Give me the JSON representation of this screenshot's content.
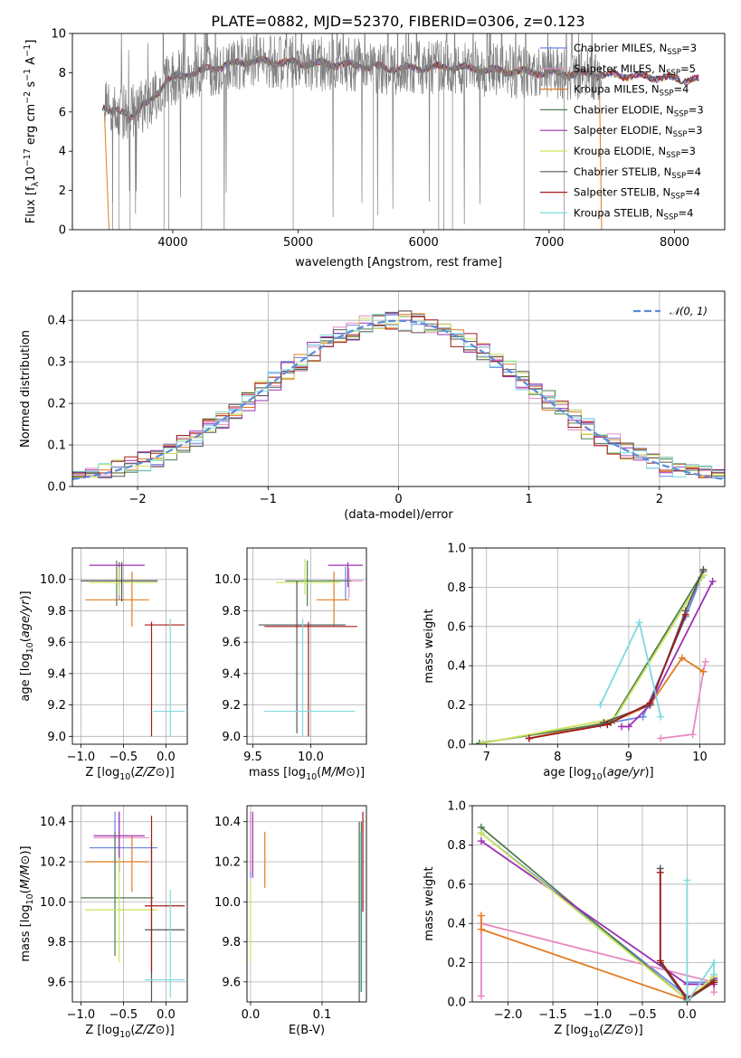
{
  "figure": {
    "title": "PLATE=0882, MJD=52370, FIBERID=0306, z=0.123",
    "legend": [
      {
        "label": "Chabrier MILES, N",
        "sub": "SSP",
        "suffix": "=3",
        "color": "#6a86e6"
      },
      {
        "label": "Salpeter MILES, N",
        "sub": "SSP",
        "suffix": "=5",
        "color": "#e78ac3"
      },
      {
        "label": "Kroupa MILES, N",
        "sub": "SSP",
        "suffix": "=4",
        "color": "#e07b21"
      },
      {
        "label": "Chabrier ELODIE, N",
        "sub": "SSP",
        "suffix": "=3",
        "color": "#4e7d4e"
      },
      {
        "label": "Salpeter ELODIE, N",
        "sub": "SSP",
        "suffix": "=3",
        "color": "#9b2fb3"
      },
      {
        "label": "Kroupa ELODIE, N",
        "sub": "SSP",
        "suffix": "=3",
        "color": "#c9e35a"
      },
      {
        "label": "Chabrier STELIB, N",
        "sub": "SSP",
        "suffix": "=4",
        "color": "#555555"
      },
      {
        "label": "Salpeter STELIB, N",
        "sub": "SSP",
        "suffix": "=4",
        "color": "#a31a1a"
      },
      {
        "label": "Kroupa STELIB, N",
        "sub": "SSP",
        "suffix": "=4",
        "color": "#7fd9e0"
      }
    ],
    "normal_label": "𝒩(0, 1)"
  },
  "chart_data": [
    {
      "id": "spectrum",
      "type": "line",
      "xlabel": "wavelength [Angstrom, rest frame]",
      "ylabel": "Flux [f",
      "ylabel_parts": [
        "Flux [f",
        "λ",
        "10",
        "−17",
        " erg cm",
        "−2",
        " s",
        "−1",
        " A",
        "−1",
        "]"
      ],
      "xlim": [
        3200,
        8400
      ],
      "ylim": [
        0,
        10
      ],
      "xticks": [
        4000,
        5000,
        6000,
        7000,
        8000
      ],
      "yticks": [
        0,
        2,
        4,
        6,
        8,
        10
      ],
      "data_color": "#7f7f7f",
      "continuum_knots_x": [
        3450,
        3500,
        3650,
        3800,
        3950,
        4100,
        4300,
        4600,
        5000,
        5400,
        5800,
        6200,
        6600,
        7000,
        7400,
        7800,
        8200
      ],
      "continuum_knots_y": [
        6.3,
        6.0,
        6.0,
        6.4,
        7.6,
        7.9,
        8.2,
        8.6,
        8.5,
        8.4,
        8.2,
        8.3,
        8.1,
        8.0,
        7.9,
        7.8,
        7.6
      ],
      "grid": false
    },
    {
      "id": "residuals",
      "type": "bar",
      "xlabel": "(data-model)/error",
      "ylabel": "Normed distribution",
      "xlim": [
        -2.5,
        2.5
      ],
      "ylim": [
        0,
        0.47
      ],
      "xticks": [
        -2,
        -1,
        0,
        1,
        2
      ],
      "xtick_labels": [
        "−2",
        "−1",
        "0",
        "1",
        "2"
      ],
      "yticks": [
        0.0,
        0.1,
        0.2,
        0.3,
        0.4
      ],
      "ytick_labels": [
        "0.0",
        "0.1",
        "0.2",
        "0.3",
        "0.4"
      ],
      "bin_width": 0.1,
      "normal_color": "#5b8bd9",
      "grid": true
    },
    {
      "id": "age_vs_Z",
      "type": "scatter",
      "xlabel": "Z [log10(Z/Z⊙)]",
      "ylabel": "age  [log10(age/yr)]",
      "xlim": [
        -1.1,
        0.25
      ],
      "ylim": [
        8.95,
        10.2
      ],
      "xticks": [
        -1.0,
        -0.5,
        0.0
      ],
      "xtick_labels": [
        "−1.0",
        "−0.5",
        "0.0"
      ],
      "yticks": [
        9.0,
        9.2,
        9.4,
        9.6,
        9.8,
        10.0
      ],
      "ytick_labels": [
        "9.0",
        "9.2",
        "9.4",
        "9.6",
        "9.8",
        "10.0"
      ],
      "points": [
        {
          "x": -0.55,
          "y": 9.99,
          "xlo": -1.0,
          "xhi": -0.1,
          "ylo": 9.87,
          "yhi": 10.08,
          "color": "#6a86e6"
        },
        {
          "x": -0.55,
          "y": 9.99,
          "xlo": -0.75,
          "xhi": -0.1,
          "ylo": 9.88,
          "yhi": 10.07,
          "color": "#e78ac3"
        },
        {
          "x": -0.4,
          "y": 9.87,
          "xlo": -0.95,
          "xhi": -0.2,
          "ylo": 9.7,
          "yhi": 10.05,
          "color": "#e07b21"
        },
        {
          "x": -0.58,
          "y": 9.99,
          "xlo": -1.0,
          "xhi": -0.1,
          "ylo": 9.83,
          "yhi": 10.12,
          "color": "#4e7d4e"
        },
        {
          "x": -0.55,
          "y": 10.09,
          "xlo": -0.9,
          "xhi": -0.25,
          "ylo": 9.95,
          "yhi": 10.11,
          "color": "#9b2fb3"
        },
        {
          "x": -0.55,
          "y": 9.98,
          "xlo": -0.9,
          "xhi": -0.1,
          "ylo": 9.9,
          "yhi": 10.08,
          "color": "#c9e35a"
        },
        {
          "x": -0.52,
          "y": 9.99,
          "xlo": -1.0,
          "xhi": -0.1,
          "ylo": 9.86,
          "yhi": 10.11,
          "color": "#555555"
        },
        {
          "x": -0.17,
          "y": 9.71,
          "xlo": -0.25,
          "xhi": 0.22,
          "ylo": 9.0,
          "yhi": 9.73,
          "color": "#a31a1a"
        },
        {
          "x": 0.05,
          "y": 9.16,
          "xlo": -0.15,
          "xhi": 0.22,
          "ylo": 9.0,
          "yhi": 9.75,
          "color": "#7fd9e0"
        }
      ]
    },
    {
      "id": "age_vs_mass",
      "type": "scatter",
      "xlabel": "mass [log10(M/M⊙)]",
      "ylabel": "",
      "xlim": [
        9.45,
        10.48
      ],
      "ylim": [
        8.95,
        10.2
      ],
      "xticks": [
        9.5,
        10.0
      ],
      "xtick_labels": [
        "9.5",
        "10.0"
      ],
      "yticks": [
        9.0,
        9.2,
        9.4,
        9.6,
        9.8,
        10.0
      ],
      "ytick_labels": [
        "9.0",
        "9.2",
        "9.4",
        "9.6",
        "9.8",
        "10.0"
      ],
      "points": [
        {
          "x": 10.3,
          "y": 9.99,
          "xlo": 10.1,
          "xhi": 10.45,
          "ylo": 9.87,
          "yhi": 10.08,
          "color": "#6a86e6"
        },
        {
          "x": 10.33,
          "y": 9.99,
          "xlo": 10.15,
          "xhi": 10.45,
          "ylo": 9.88,
          "yhi": 10.07,
          "color": "#e78ac3"
        },
        {
          "x": 10.2,
          "y": 9.87,
          "xlo": 10.05,
          "xhi": 10.33,
          "ylo": 9.7,
          "yhi": 10.05,
          "color": "#e07b21"
        },
        {
          "x": 9.97,
          "y": 9.99,
          "xlo": 9.78,
          "xhi": 10.35,
          "ylo": 9.83,
          "yhi": 10.12,
          "color": "#4e7d4e"
        },
        {
          "x": 10.32,
          "y": 10.09,
          "xlo": 10.15,
          "xhi": 10.45,
          "ylo": 9.95,
          "yhi": 10.11,
          "color": "#9b2fb3"
        },
        {
          "x": 9.95,
          "y": 9.98,
          "xlo": 9.7,
          "xhi": 10.25,
          "ylo": 9.9,
          "yhi": 10.13,
          "color": "#c9e35a"
        },
        {
          "x": 9.88,
          "y": 9.71,
          "xlo": 9.55,
          "xhi": 10.3,
          "ylo": 9.02,
          "yhi": 9.99,
          "color": "#555555"
        },
        {
          "x": 9.98,
          "y": 9.7,
          "xlo": 9.6,
          "xhi": 10.4,
          "ylo": 9.0,
          "yhi": 9.73,
          "color": "#a31a1a"
        },
        {
          "x": 9.93,
          "y": 9.16,
          "xlo": 9.6,
          "xhi": 10.38,
          "ylo": 9.0,
          "yhi": 9.75,
          "color": "#7fd9e0"
        }
      ]
    },
    {
      "id": "mass_weight_vs_age",
      "type": "line",
      "xlabel": "age  [log10(age/yr)]",
      "ylabel": "mass weight",
      "xlim": [
        6.8,
        10.35
      ],
      "ylim": [
        0,
        1
      ],
      "xticks": [
        7,
        8,
        9,
        10
      ],
      "xtick_labels": [
        "7",
        "8",
        "9",
        "10"
      ],
      "yticks": [
        0.0,
        0.2,
        0.4,
        0.6,
        0.8,
        1.0
      ],
      "ytick_labels": [
        "0.0",
        "0.2",
        "0.4",
        "0.6",
        "0.8",
        "1.0"
      ],
      "series": [
        {
          "color": "#6a86e6",
          "x": [
            7.6,
            8.6,
            9.2,
            9.8,
            10.02
          ],
          "y": [
            0.03,
            0.1,
            0.14,
            0.65,
            0.85
          ]
        },
        {
          "color": "#e78ac3",
          "x": [
            9.45,
            9.9,
            10.05,
            10.08
          ],
          "y": [
            0.03,
            0.05,
            0.37,
            0.42
          ]
        },
        {
          "color": "#e07b21",
          "x": [
            7.6,
            8.8,
            9.3,
            9.75,
            10.05
          ],
          "y": [
            0.03,
            0.12,
            0.2,
            0.44,
            0.37
          ]
        },
        {
          "color": "#4e7d4e",
          "x": [
            6.9,
            8.75,
            10.05
          ],
          "y": [
            0.005,
            0.11,
            0.88
          ]
        },
        {
          "color": "#9b2fb3",
          "x": [
            8.9,
            9.0,
            9.3,
            10.18
          ],
          "y": [
            0.09,
            0.09,
            0.2,
            0.83
          ]
        },
        {
          "color": "#c9e35a",
          "x": [
            6.95,
            8.8,
            10.05
          ],
          "y": [
            0.005,
            0.13,
            0.86
          ]
        },
        {
          "color": "#555555",
          "x": [
            8.65,
            9.3,
            9.8,
            10.05
          ],
          "y": [
            0.11,
            0.2,
            0.68,
            0.89
          ]
        },
        {
          "color": "#a31a1a",
          "x": [
            7.6,
            8.7,
            9.3,
            9.8
          ],
          "y": [
            0.03,
            0.1,
            0.21,
            0.66
          ]
        },
        {
          "color": "#7fd9e0",
          "x": [
            8.6,
            9.15,
            9.45
          ],
          "y": [
            0.2,
            0.62,
            0.14
          ]
        }
      ]
    },
    {
      "id": "mass_vs_Z",
      "type": "scatter",
      "xlabel": "Z [log10(Z/Z⊙)]",
      "ylabel": "mass [log10(M/M⊙)]",
      "xlim": [
        -1.1,
        0.25
      ],
      "ylim": [
        9.5,
        10.48
      ],
      "xticks": [
        -1.0,
        -0.5,
        0.0
      ],
      "xtick_labels": [
        "−1.0",
        "−0.5",
        "0.0"
      ],
      "yticks": [
        9.6,
        9.8,
        10.0,
        10.2,
        10.4
      ],
      "ytick_labels": [
        "9.6",
        "9.8",
        "10.0",
        "10.2",
        "10.4"
      ],
      "points": [
        {
          "x": -0.6,
          "y": 10.27,
          "xlo": -0.9,
          "xhi": -0.1,
          "ylo": 10.1,
          "yhi": 10.45,
          "color": "#6a86e6"
        },
        {
          "x": -0.55,
          "y": 10.32,
          "xlo": -0.85,
          "xhi": -0.2,
          "ylo": 10.15,
          "yhi": 10.45,
          "color": "#e78ac3"
        },
        {
          "x": -0.4,
          "y": 10.2,
          "xlo": -0.95,
          "xhi": -0.2,
          "ylo": 10.05,
          "yhi": 10.33,
          "color": "#e07b21"
        },
        {
          "x": -0.6,
          "y": 10.02,
          "xlo": -1.0,
          "xhi": -0.15,
          "ylo": 9.73,
          "yhi": 10.35,
          "color": "#4e7d4e"
        },
        {
          "x": -0.55,
          "y": 10.33,
          "xlo": -0.85,
          "xhi": -0.25,
          "ylo": 10.15,
          "yhi": 10.45,
          "color": "#9b2fb3"
        },
        {
          "x": -0.55,
          "y": 9.96,
          "xlo": -0.95,
          "xhi": -0.1,
          "ylo": 9.7,
          "yhi": 10.22,
          "color": "#c9e35a"
        },
        {
          "x": -0.17,
          "y": 9.86,
          "xlo": -0.25,
          "xhi": 0.22,
          "ylo": 9.5,
          "yhi": 10.3,
          "color": "#555555"
        },
        {
          "x": -0.17,
          "y": 9.98,
          "xlo": -0.25,
          "xhi": 0.22,
          "ylo": 9.65,
          "yhi": 10.43,
          "color": "#a31a1a"
        },
        {
          "x": 0.05,
          "y": 9.61,
          "xlo": -0.25,
          "xhi": 0.22,
          "ylo": 9.52,
          "yhi": 10.06,
          "color": "#7fd9e0"
        }
      ]
    },
    {
      "id": "mass_vs_ebv",
      "type": "scatter",
      "xlabel": "E(B-V)",
      "ylabel": "",
      "xlim": [
        -0.005,
        0.162
      ],
      "ylim": [
        9.5,
        10.48
      ],
      "xticks": [
        0.0,
        0.1
      ],
      "xtick_labels": [
        "0.0",
        "0.1"
      ],
      "yticks": [
        9.6,
        9.8,
        10.0,
        10.2,
        10.4
      ],
      "ytick_labels": [
        "9.6",
        "9.8",
        "10.0",
        "10.2",
        "10.4"
      ],
      "points": [
        {
          "x": 0.0,
          "y": 10.27,
          "xlo": 0.0,
          "xhi": 0.0,
          "ylo": 10.12,
          "yhi": 10.45,
          "color": "#6a86e6"
        },
        {
          "x": 0.0,
          "y": 10.32,
          "xlo": 0.0,
          "xhi": 0.0,
          "ylo": 10.15,
          "yhi": 10.45,
          "color": "#e78ac3"
        },
        {
          "x": 0.02,
          "y": 10.2,
          "xlo": 0.02,
          "xhi": 0.02,
          "ylo": 10.07,
          "yhi": 10.35,
          "color": "#e07b21"
        },
        {
          "x": 0.155,
          "y": 10.02,
          "xlo": 0.155,
          "xhi": 0.155,
          "ylo": 9.55,
          "yhi": 10.4,
          "color": "#4e7d4e"
        },
        {
          "x": 0.003,
          "y": 10.3,
          "xlo": 0.003,
          "xhi": 0.003,
          "ylo": 10.12,
          "yhi": 10.45,
          "color": "#9b2fb3"
        },
        {
          "x": 0.0,
          "y": 9.96,
          "xlo": 0.0,
          "xhi": 0.0,
          "ylo": 9.7,
          "yhi": 10.1,
          "color": "#c9e35a"
        },
        {
          "x": 0.152,
          "y": 9.9,
          "xlo": 0.152,
          "xhi": 0.152,
          "ylo": 9.5,
          "yhi": 10.4,
          "color": "#555555"
        },
        {
          "x": 0.157,
          "y": 10.2,
          "xlo": 0.157,
          "xhi": 0.157,
          "ylo": 9.95,
          "yhi": 10.45,
          "color": "#a31a1a"
        },
        {
          "x": 0.154,
          "y": 9.8,
          "xlo": 0.154,
          "xhi": 0.154,
          "ylo": 9.55,
          "yhi": 10.35,
          "color": "#7fd9e0"
        }
      ]
    },
    {
      "id": "mass_weight_vs_Z",
      "type": "line",
      "xlabel": "Z [log10(Z/Z⊙)]",
      "ylabel": "mass weight",
      "xlim": [
        -2.4,
        0.42
      ],
      "ylim": [
        0,
        1
      ],
      "xticks": [
        -2.0,
        -1.5,
        -1.0,
        -0.5,
        0.0
      ],
      "xtick_labels": [
        "−2.0",
        "−1.5",
        "−1.0",
        "−0.5",
        "0.0"
      ],
      "yticks": [
        0.0,
        0.2,
        0.4,
        0.6,
        0.8,
        1.0
      ],
      "ytick_labels": [
        "0.0",
        "0.2",
        "0.4",
        "0.6",
        "0.8",
        "1.0"
      ],
      "series": [
        {
          "color": "#6a86e6",
          "x": [
            -2.3,
            0.0,
            0.0,
            0.3
          ],
          "y": [
            0.86,
            0.03,
            0.1,
            0.1
          ]
        },
        {
          "color": "#e78ac3",
          "x": [
            -2.3,
            -2.3,
            0.3,
            0.3
          ],
          "y": [
            0.03,
            0.4,
            0.1,
            0.05
          ]
        },
        {
          "color": "#e07b21",
          "x": [
            -2.3,
            -2.3,
            0.0,
            0.3
          ],
          "y": [
            0.44,
            0.37,
            0.01,
            0.12
          ]
        },
        {
          "color": "#4e7d4e",
          "x": [
            -2.3,
            0.0,
            0.3
          ],
          "y": [
            0.89,
            0.01,
            0.1
          ]
        },
        {
          "color": "#9b2fb3",
          "x": [
            -2.3,
            0.0,
            0.3,
            0.3
          ],
          "y": [
            0.82,
            0.09,
            0.09,
            0.12
          ]
        },
        {
          "color": "#c9e35a",
          "x": [
            -2.3,
            0.0,
            0.3
          ],
          "y": [
            0.86,
            0.01,
            0.13
          ]
        },
        {
          "color": "#555555",
          "x": [
            -0.3,
            -0.3,
            0.0,
            0.3
          ],
          "y": [
            0.68,
            0.2,
            0.01,
            0.11
          ]
        },
        {
          "color": "#a31a1a",
          "x": [
            -0.3,
            -0.3,
            0.0,
            0.3
          ],
          "y": [
            0.66,
            0.21,
            0.02,
            0.1
          ]
        },
        {
          "color": "#7fd9e0",
          "x": [
            0.0,
            0.0,
            0.3,
            0.3
          ],
          "y": [
            0.62,
            0.0,
            0.2,
            0.14
          ]
        }
      ]
    }
  ]
}
